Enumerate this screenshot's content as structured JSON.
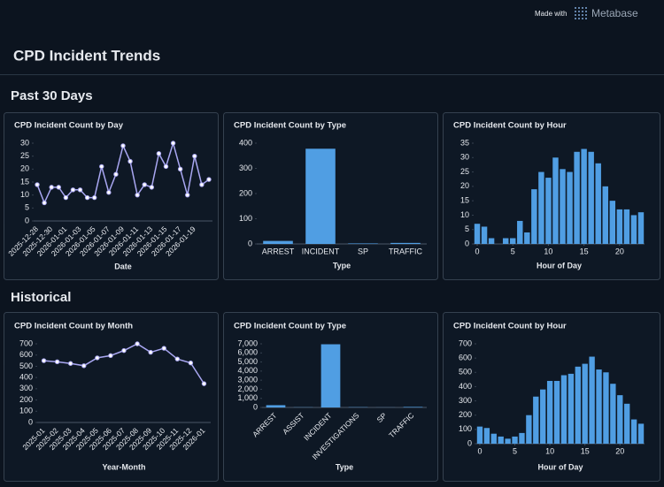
{
  "header": {
    "made_with": "Made with",
    "brand": "Metabase",
    "title": "CPD Incident Trends"
  },
  "sections": [
    "Past 30 Days",
    "Historical"
  ],
  "chart_data": [
    {
      "type": "line",
      "title": "CPD Incident Count by Day",
      "x_label": "Date",
      "color": "#a9a7f2",
      "categories": [
        "2025-12-28",
        null,
        "2025-12-30",
        null,
        "2026-01-01",
        null,
        "2026-01-03",
        null,
        "2026-01-05",
        null,
        "2026-01-07",
        null,
        "2026-01-09",
        null,
        "2026-01-11",
        null,
        "2026-01-13",
        null,
        "2026-01-15",
        null,
        "2026-01-17",
        null,
        "2026-01-19",
        null,
        null
      ],
      "values": [
        14,
        7,
        13,
        13,
        9,
        12,
        12,
        9,
        9,
        21,
        11,
        18,
        29,
        23,
        10,
        14,
        13,
        26,
        21,
        30,
        20,
        10,
        25,
        14,
        16
      ],
      "ylim": [
        0,
        30
      ],
      "yticks": [
        0,
        5,
        10,
        15,
        20,
        25,
        30
      ]
    },
    {
      "type": "bar",
      "title": "CPD Incident Count by Type",
      "x_label": "Type",
      "color": "#509ee3",
      "categories": [
        "ARREST",
        "INCIDENT",
        "SP",
        "TRAFFIC"
      ],
      "values": [
        12,
        378,
        2,
        4
      ],
      "ylim": [
        0,
        400
      ],
      "yticks": [
        0,
        100,
        200,
        300,
        400
      ]
    },
    {
      "type": "histogram",
      "title": "CPD Incident Count by Hour",
      "x_label": "Hour of Day",
      "color": "#509ee3",
      "x": [
        0,
        1,
        2,
        3,
        4,
        5,
        6,
        7,
        8,
        9,
        10,
        11,
        12,
        13,
        14,
        15,
        16,
        17,
        18,
        19,
        20,
        21,
        22,
        23
      ],
      "values": [
        7,
        6,
        2,
        0,
        2,
        2,
        8,
        4,
        19,
        25,
        23,
        30,
        26,
        25,
        32,
        33,
        32,
        28,
        20,
        15,
        12,
        12,
        10,
        11
      ],
      "xlim": [
        -0.5,
        23.5
      ],
      "xticks": [
        0,
        5,
        10,
        15,
        20
      ],
      "ylim": [
        0,
        35
      ],
      "yticks": [
        0,
        5,
        10,
        15,
        20,
        25,
        30,
        35
      ]
    },
    {
      "type": "line",
      "title": "CPD Incident Count by Month",
      "x_label": "Year-Month",
      "color": "#a9a7f2",
      "categories": [
        "2025-01",
        "2025-02",
        "2025-03",
        "2025-04",
        "2025-05",
        "2025-06",
        "2025-07",
        "2025-08",
        "2025-09",
        "2025-10",
        "2025-11",
        "2025-12",
        "2026-01"
      ],
      "values": [
        550,
        540,
        525,
        505,
        575,
        595,
        640,
        700,
        625,
        660,
        565,
        530,
        345
      ],
      "ylim": [
        0,
        700
      ],
      "yticks": [
        0,
        100,
        200,
        300,
        400,
        500,
        600,
        700
      ]
    },
    {
      "type": "bar",
      "title": "CPD Incident Count by Type",
      "x_label": "Type",
      "color": "#509ee3",
      "categories": [
        "ARREST",
        "ASSIST",
        "INCIDENT",
        "INVESTIGATIONS",
        "SP",
        "TRAFFIC"
      ],
      "values": [
        250,
        20,
        6950,
        30,
        10,
        60
      ],
      "ylim": [
        0,
        7000
      ],
      "yticks": [
        0,
        {
          "value": 1000,
          "label": "1,000"
        },
        {
          "value": 2000,
          "label": "2,000"
        },
        {
          "value": 3000,
          "label": "3,000"
        },
        {
          "value": 4000,
          "label": "4,000"
        },
        {
          "value": 5000,
          "label": "5,000"
        },
        {
          "value": 6000,
          "label": "6,000"
        },
        {
          "value": 7000,
          "label": "7,000"
        }
      ]
    },
    {
      "type": "histogram",
      "title": "CPD Incident Count by Hour",
      "x_label": "Hour of Day",
      "color": "#509ee3",
      "x": [
        0,
        1,
        2,
        3,
        4,
        5,
        6,
        7,
        8,
        9,
        10,
        11,
        12,
        13,
        14,
        15,
        16,
        17,
        18,
        19,
        20,
        21,
        22,
        23
      ],
      "values": [
        120,
        110,
        70,
        50,
        35,
        50,
        75,
        200,
        330,
        380,
        440,
        440,
        480,
        490,
        540,
        560,
        610,
        520,
        500,
        420,
        340,
        280,
        170,
        140
      ],
      "xlim": [
        -0.5,
        23.5
      ],
      "xticks": [
        0,
        5,
        10,
        15,
        20
      ],
      "ylim": [
        0,
        700
      ],
      "yticks": [
        0,
        100,
        200,
        300,
        400,
        500,
        600,
        700
      ]
    }
  ]
}
